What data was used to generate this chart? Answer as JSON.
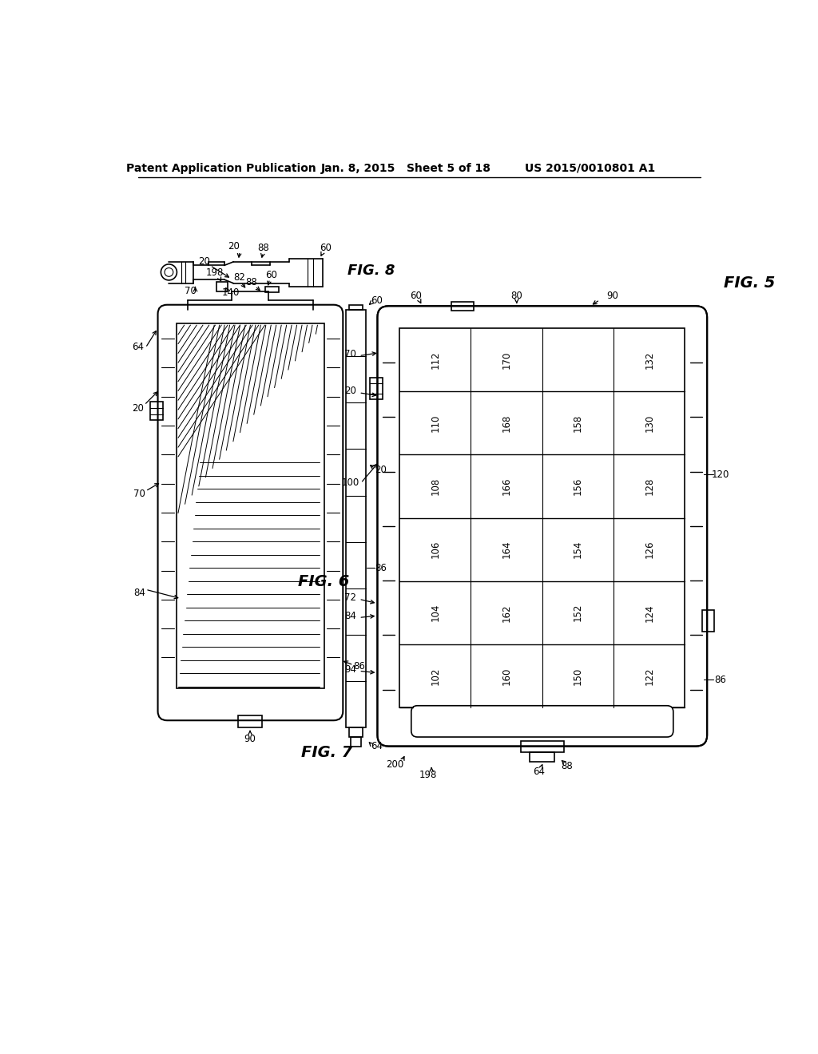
{
  "bg_color": "#ffffff",
  "header_left": "Patent Application Publication",
  "header_center": "Jan. 8, 2015   Sheet 5 of 18",
  "header_right": "US 2015/0010801 A1",
  "fig5_label": "FIG. 5",
  "fig6_label": "FIG. 6",
  "fig7_label": "FIG. 7",
  "fig8_label": "FIG. 8"
}
